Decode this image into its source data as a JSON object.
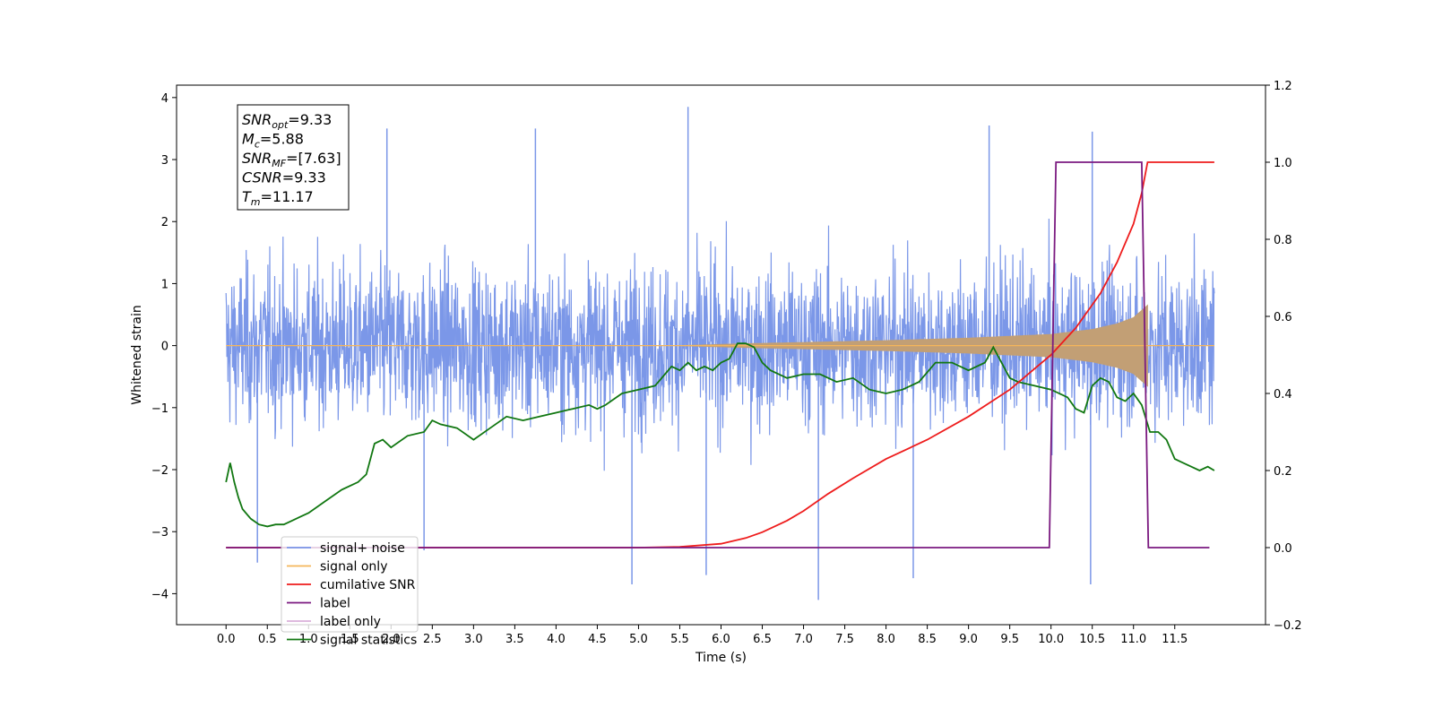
{
  "chart_data": {
    "type": "line",
    "xlabel": "Time (s)",
    "ylabel": "Whitened strain",
    "xlim": [
      -0.6,
      12.6
    ],
    "ylim": [
      -4.5,
      4.2
    ],
    "ylim_right": [
      -0.2,
      1.2
    ],
    "x_ticks": [
      0.0,
      0.5,
      1.0,
      1.5,
      2.0,
      2.5,
      3.0,
      3.5,
      4.0,
      4.5,
      5.0,
      5.5,
      6.0,
      6.5,
      7.0,
      7.5,
      8.0,
      8.5,
      9.0,
      9.5,
      10.0,
      10.5,
      11.0,
      11.5
    ],
    "x_tick_labels": [
      "0.0",
      "0.5",
      "1.0",
      "1.5",
      "2.0",
      "2.5",
      "3.0",
      "3.5",
      "4.0",
      "4.5",
      "5.0",
      "5.5",
      "6.0",
      "6.5",
      "7.0",
      "7.5",
      "8.0",
      "8.5",
      "9.0",
      "9.5",
      "10.0",
      "10.5",
      "11.0",
      "11.5"
    ],
    "y_ticks_left": [
      -4,
      -3,
      -2,
      -1,
      0,
      1,
      2,
      3,
      4
    ],
    "y_tick_labels_left": [
      "−4",
      "−3",
      "−2",
      "−1",
      "0",
      "1",
      "2",
      "3",
      "4"
    ],
    "y_ticks_right": [
      -0.2,
      0.0,
      0.2,
      0.4,
      0.6,
      0.8,
      1.0,
      1.2
    ],
    "y_tick_labels_right": [
      "−0.2",
      "0.0",
      "0.2",
      "0.4",
      "0.6",
      "0.8",
      "1.0",
      "1.2"
    ],
    "grid": false,
    "legend_position": "lower-left",
    "annotation": [
      {
        "base": "SNR",
        "sub": "opt",
        "rest": "=9.33"
      },
      {
        "base": "M",
        "sub": "c",
        "rest": "=5.88"
      },
      {
        "base": "SNR",
        "sub": "MF",
        "rest": "=[7.63]"
      },
      {
        "base": "CSNR",
        "sub": "",
        "rest": "=9.33"
      },
      {
        "base": "T",
        "sub": "m",
        "rest": "=11.17"
      }
    ],
    "series": [
      {
        "name": "signal+ noise",
        "axis": "left",
        "color": "#7b97e8",
        "description": "whitened noise band, typical amplitude about ±1.8 with spikes near ±3.5",
        "x_range": [
          0.0,
          11.98
        ],
        "envelope": [
          -1.9,
          2.2
        ],
        "spikes": [
          {
            "x": 1.95,
            "y": 3.5
          },
          {
            "x": 3.75,
            "y": 3.5
          },
          {
            "x": 5.6,
            "y": 3.85
          },
          {
            "x": 9.25,
            "y": 3.55
          },
          {
            "x": 10.5,
            "y": 3.45
          },
          {
            "x": 4.92,
            "y": -3.85
          },
          {
            "x": 7.18,
            "y": -4.1
          },
          {
            "x": 10.48,
            "y": -3.85
          },
          {
            "x": 0.38,
            "y": -3.5
          },
          {
            "x": 8.33,
            "y": -3.75
          },
          {
            "x": 5.82,
            "y": -3.7
          },
          {
            "x": 2.4,
            "y": -3.3
          }
        ]
      },
      {
        "name": "signal only",
        "axis": "left",
        "color": "#f5b65a",
        "fill_color": "#c29f75",
        "description": "chirp whose amplitude grows from ~0 to about 0.6 at merger (11.17 s), then flat 0",
        "merger_time": 11.17,
        "amplitude_points": [
          [
            0,
            0.0
          ],
          [
            5.5,
            0.0
          ],
          [
            6.3,
            0.03
          ],
          [
            7.0,
            0.05
          ],
          [
            8.0,
            0.08
          ],
          [
            9.0,
            0.12
          ],
          [
            10.0,
            0.18
          ],
          [
            10.5,
            0.26
          ],
          [
            10.8,
            0.35
          ],
          [
            11.0,
            0.45
          ],
          [
            11.17,
            0.65
          ]
        ]
      },
      {
        "name": "cumilative SNR",
        "axis": "right",
        "color": "#ee1c1c",
        "x": [
          0.0,
          5.0,
          5.5,
          6.0,
          6.3,
          6.5,
          6.8,
          7.0,
          7.3,
          7.6,
          8.0,
          8.5,
          9.0,
          9.5,
          10.0,
          10.3,
          10.6,
          10.8,
          11.0,
          11.1,
          11.17,
          11.5,
          11.98
        ],
        "y": [
          0.0,
          0.0,
          0.002,
          0.01,
          0.025,
          0.04,
          0.07,
          0.095,
          0.14,
          0.18,
          0.23,
          0.28,
          0.34,
          0.41,
          0.5,
          0.57,
          0.66,
          0.74,
          0.84,
          0.92,
          1.0,
          1.0,
          1.0
        ]
      },
      {
        "name": "label",
        "axis": "right",
        "color": "#7b1a80",
        "x": [
          0.0,
          9.98,
          10.06,
          11.1,
          11.18,
          11.92
        ],
        "y": [
          0.0,
          0.0,
          1.0,
          1.0,
          0.0,
          0.0
        ]
      },
      {
        "name": "label only",
        "axis": "right",
        "color": "#d9b0d9",
        "hidden_line": true
      },
      {
        "name": "signal statistics",
        "axis": "right",
        "color": "#117711",
        "x": [
          0.0,
          0.05,
          0.1,
          0.15,
          0.2,
          0.3,
          0.4,
          0.5,
          0.6,
          0.7,
          0.8,
          0.9,
          1.0,
          1.2,
          1.4,
          1.6,
          1.7,
          1.8,
          1.9,
          2.0,
          2.2,
          2.4,
          2.5,
          2.6,
          2.8,
          3.0,
          3.2,
          3.4,
          3.6,
          3.8,
          4.0,
          4.2,
          4.4,
          4.5,
          4.6,
          4.8,
          5.0,
          5.2,
          5.4,
          5.5,
          5.6,
          5.7,
          5.8,
          5.9,
          6.0,
          6.1,
          6.2,
          6.3,
          6.4,
          6.5,
          6.6,
          6.8,
          7.0,
          7.2,
          7.4,
          7.6,
          7.8,
          8.0,
          8.2,
          8.4,
          8.6,
          8.8,
          9.0,
          9.2,
          9.3,
          9.5,
          9.6,
          9.8,
          10.0,
          10.2,
          10.3,
          10.4,
          10.5,
          10.6,
          10.7,
          10.8,
          10.9,
          11.0,
          11.1,
          11.2,
          11.3,
          11.4,
          11.5,
          11.6,
          11.7,
          11.8,
          11.9,
          11.98
        ],
        "y": [
          0.17,
          0.22,
          0.17,
          0.13,
          0.1,
          0.075,
          0.06,
          0.055,
          0.06,
          0.06,
          0.07,
          0.08,
          0.09,
          0.12,
          0.15,
          0.17,
          0.19,
          0.27,
          0.28,
          0.26,
          0.29,
          0.3,
          0.33,
          0.32,
          0.31,
          0.28,
          0.31,
          0.34,
          0.33,
          0.34,
          0.35,
          0.36,
          0.37,
          0.36,
          0.37,
          0.4,
          0.41,
          0.42,
          0.47,
          0.46,
          0.48,
          0.46,
          0.47,
          0.46,
          0.48,
          0.49,
          0.53,
          0.53,
          0.52,
          0.48,
          0.46,
          0.44,
          0.45,
          0.45,
          0.43,
          0.44,
          0.41,
          0.4,
          0.41,
          0.43,
          0.48,
          0.48,
          0.46,
          0.48,
          0.52,
          0.44,
          0.43,
          0.42,
          0.41,
          0.39,
          0.36,
          0.35,
          0.42,
          0.44,
          0.43,
          0.39,
          0.38,
          0.4,
          0.37,
          0.3,
          0.3,
          0.28,
          0.23,
          0.22,
          0.21,
          0.2,
          0.21,
          0.2
        ]
      }
    ]
  }
}
